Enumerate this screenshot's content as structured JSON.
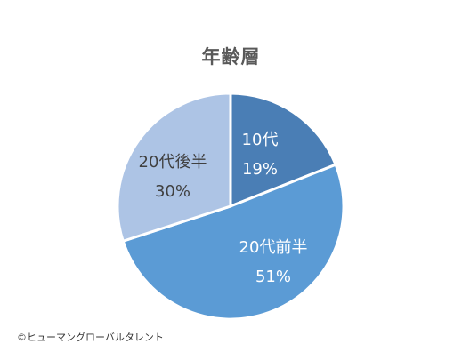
{
  "chart_data": {
    "type": "pie",
    "title": "年齢層",
    "slices": [
      {
        "label": "10代",
        "value": 19,
        "value_label": "19%",
        "color": "#4a7eb5"
      },
      {
        "label": "20代前半",
        "value": 51,
        "value_label": "51%",
        "color": "#5b9bd5"
      },
      {
        "label": "20代後半",
        "value": 30,
        "value_label": "30%",
        "color": "#adc4e5"
      }
    ],
    "start_angle": "12 o'clock",
    "direction": "clockwise",
    "label_color": "#ffffff",
    "outer_label_color": "#404040"
  },
  "footer": {
    "copyright": "©ヒューマングローバルタレント"
  }
}
